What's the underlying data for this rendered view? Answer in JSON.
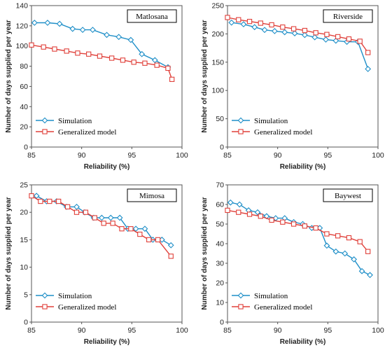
{
  "chart_data": [
    {
      "type": "line",
      "panel_label": "Matlosana",
      "xlabel": "Reliability (%)",
      "ylabel": "Number of days supplied per year",
      "xlim": [
        85,
        100
      ],
      "ylim": [
        0,
        140
      ],
      "xticks": [
        85,
        90,
        95,
        100
      ],
      "yticks": [
        0,
        20,
        40,
        60,
        80,
        100,
        120,
        140
      ],
      "grid": false,
      "legend_position": "lower-left",
      "series": [
        {
          "name": "Simulation",
          "color": "#1f8fc8",
          "marker": "diamond",
          "x": [
            85.3,
            86.6,
            87.8,
            89.1,
            90.1,
            91.1,
            92.5,
            93.7,
            94.9,
            96.0,
            97.3,
            98.6
          ],
          "y": [
            123,
            123,
            122,
            117,
            116,
            116,
            111,
            109,
            106,
            92,
            86,
            79
          ]
        },
        {
          "name": "Generalized model",
          "color": "#e0403a",
          "marker": "square",
          "x": [
            85.0,
            86.2,
            87.3,
            88.5,
            89.6,
            90.7,
            91.8,
            93.0,
            94.1,
            95.2,
            96.3,
            97.5,
            98.6,
            99.0
          ],
          "y": [
            101,
            99,
            97,
            95,
            93,
            92,
            90,
            88,
            86,
            84,
            83,
            81,
            78,
            67
          ]
        }
      ]
    },
    {
      "type": "line",
      "panel_label": "Riverside",
      "xlabel": "Reliability (%)",
      "ylabel": "Number of days supplied per year",
      "xlim": [
        85,
        100
      ],
      "ylim": [
        0,
        250
      ],
      "xticks": [
        85,
        90,
        95,
        100
      ],
      "yticks": [
        0,
        50,
        100,
        150,
        200,
        250
      ],
      "grid": false,
      "legend_position": "lower-left",
      "series": [
        {
          "name": "Simulation",
          "color": "#1f8fc8",
          "marker": "diamond",
          "x": [
            85.4,
            86.6,
            87.7,
            88.7,
            89.7,
            90.7,
            91.7,
            92.7,
            93.7,
            94.8,
            95.8,
            96.9,
            98.0,
            99.0
          ],
          "y": [
            220,
            217,
            212,
            207,
            205,
            203,
            201,
            198,
            194,
            190,
            188,
            186,
            186,
            138
          ]
        },
        {
          "name": "Generalized model",
          "color": "#e0403a",
          "marker": "square",
          "x": [
            85.0,
            86.1,
            87.2,
            88.3,
            89.4,
            90.5,
            91.6,
            92.7,
            93.8,
            94.9,
            96.0,
            97.1,
            98.2,
            99.0
          ],
          "y": [
            229,
            225,
            222,
            219,
            216,
            212,
            209,
            206,
            202,
            199,
            195,
            191,
            187,
            167
          ]
        }
      ]
    },
    {
      "type": "line",
      "panel_label": "Mimosa",
      "xlabel": "Reliability (%)",
      "ylabel": "Number of days supplied per year",
      "xlim": [
        85,
        100
      ],
      "ylim": [
        0,
        25
      ],
      "xticks": [
        85,
        90,
        95,
        100
      ],
      "yticks": [
        0,
        5,
        10,
        15,
        20,
        25
      ],
      "grid": false,
      "legend_position": "lower-left",
      "series": [
        {
          "name": "Simulation",
          "color": "#1f8fc8",
          "marker": "diamond",
          "x": [
            85.5,
            86.5,
            87.5,
            88.5,
            89.5,
            90.3,
            91.2,
            92.0,
            92.9,
            93.8,
            94.6,
            95.4,
            96.3,
            97.1,
            98.0,
            98.9
          ],
          "y": [
            23,
            22,
            22,
            21,
            21,
            20,
            19,
            19,
            19,
            19,
            17,
            17,
            17,
            15,
            15,
            14
          ]
        },
        {
          "name": "Generalized model",
          "color": "#e0403a",
          "marker": "square",
          "x": [
            85.0,
            85.9,
            86.8,
            87.7,
            88.6,
            89.5,
            90.4,
            91.3,
            92.2,
            93.1,
            94.0,
            94.9,
            95.8,
            96.7,
            97.6,
            98.9
          ],
          "y": [
            23,
            22,
            22,
            22,
            21,
            20,
            20,
            19,
            18,
            18,
            17,
            17,
            16,
            15,
            15,
            12
          ]
        }
      ]
    },
    {
      "type": "line",
      "panel_label": "Baywest",
      "xlabel": "Reliability (%)",
      "ylabel": "Number of days supplied per year",
      "xlim": [
        85,
        100
      ],
      "ylim": [
        0,
        70
      ],
      "xticks": [
        85,
        90,
        95,
        100
      ],
      "yticks": [
        0,
        10,
        20,
        30,
        40,
        50,
        60,
        70
      ],
      "grid": false,
      "legend_position": "lower-left",
      "series": [
        {
          "name": "Simulation",
          "color": "#1f8fc8",
          "marker": "diamond",
          "x": [
            85.3,
            86.2,
            87.1,
            88.0,
            88.9,
            89.8,
            90.7,
            91.6,
            92.5,
            93.4,
            94.2,
            94.9,
            95.8,
            96.7,
            97.6,
            98.4,
            99.2
          ],
          "y": [
            61,
            60,
            57,
            56,
            54,
            53,
            53,
            51,
            50,
            48,
            48,
            39,
            36,
            35,
            32,
            26,
            24
          ]
        },
        {
          "name": "Generalized model",
          "color": "#e0403a",
          "marker": "square",
          "x": [
            85.0,
            86.1,
            87.2,
            88.3,
            89.4,
            90.5,
            91.6,
            92.7,
            93.8,
            94.9,
            96.0,
            97.1,
            98.2,
            99.0
          ],
          "y": [
            57,
            56,
            55,
            54,
            52,
            51,
            50,
            49,
            48,
            45,
            44,
            43,
            41,
            36
          ]
        }
      ]
    }
  ]
}
